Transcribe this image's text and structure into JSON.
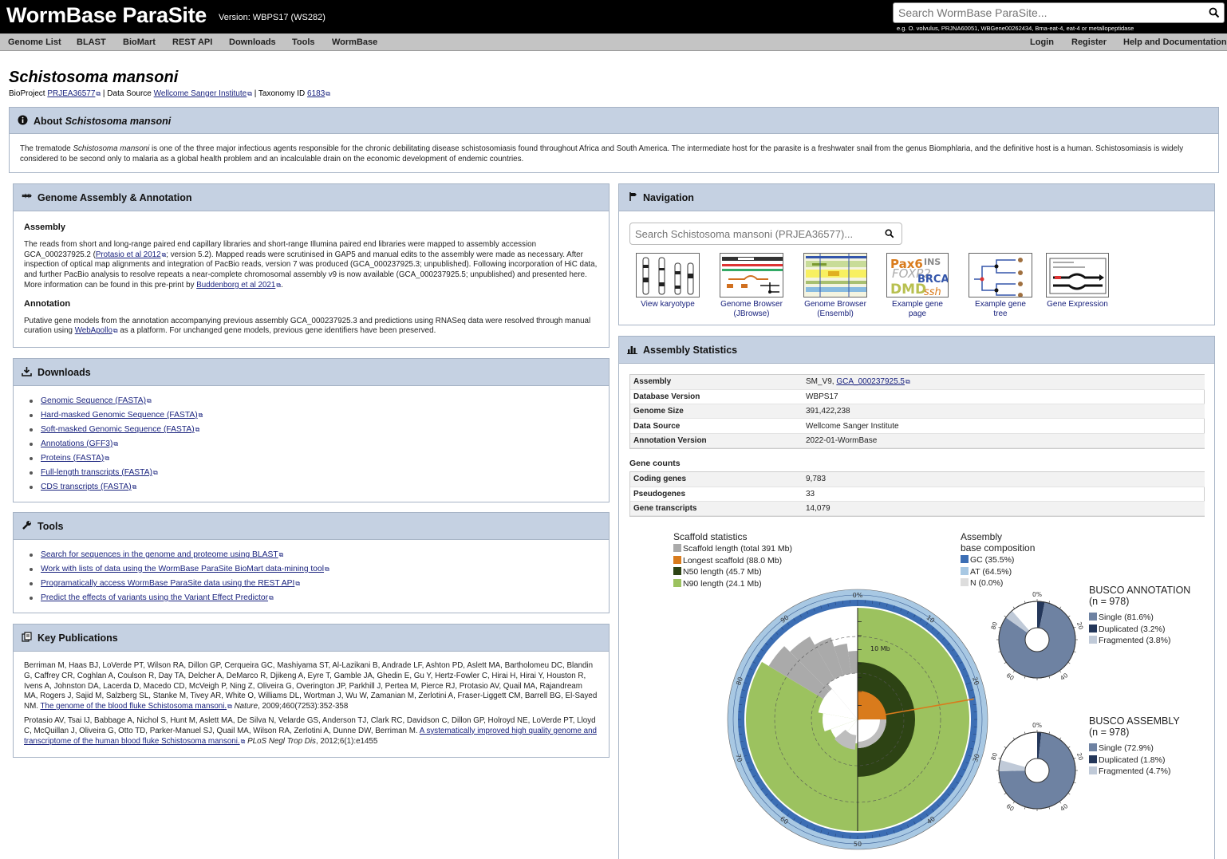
{
  "header": {
    "logo": "WormBase ParaSite",
    "version": "Version: WBPS17 (WS282)",
    "search_placeholder": "Search WormBase ParaSite...",
    "search_hint": "e.g. O. volvulus, PRJNA60051, WBGene00262434, Bma-eat-4, eat-4 or metallopeptidase"
  },
  "nav": {
    "left": [
      "Genome List",
      "BLAST",
      "BioMart",
      "REST API",
      "Downloads",
      "Tools",
      "WormBase"
    ],
    "right": [
      "Login",
      "Register",
      "Help and Documentation"
    ]
  },
  "species": {
    "title": "Schistosoma mansoni",
    "bioproject_label": "BioProject",
    "bioproject": "PRJEA36577",
    "source_label": "| Data Source",
    "source": "Wellcome Sanger Institute",
    "taxonomy_label": "| Taxonomy ID",
    "taxonomy": "6183"
  },
  "about": {
    "title_prefix": "About",
    "title_species": "Schistosoma mansoni",
    "text_a": "The trematode ",
    "text_species": "Schistosoma mansoni",
    "text_b": " is one of the three major infectious agents responsible for the chronic debilitating disease schistosomiasis found throughout Africa and South America. The intermediate host for the parasite is a freshwater snail from the genus Biomphlaria, and the definitive host is a human. Schistosomiasis is widely considered to be second only to malaria as a global health problem and an incalculable drain on the economic development of endemic countries."
  },
  "assembly_panel": {
    "title": "Genome Assembly & Annotation",
    "assembly_heading": "Assembly",
    "assembly_a": "The reads from short and long-range paired end capillary libraries and short-range Illumina paired end libraries were mapped to assembly accession GCA_000237925.2 (",
    "assembly_link1": "Protasio et al 2012",
    "assembly_b": "; version 5.2). Mapped reads were scrutinised in GAP5 and manual edits to the assembly were made as necessary. After inspection of optical map alignments and integration of PacBio reads, version 7 was produced (GCA_000237925.3; unpublished). Following incorporation of HiC data, and further PacBio analysis to resolve repeats a near-complete chromosomal assembly v9 is now available (GCA_000237925.5; unpublished) and presented here. More information can be found in this pre-print by ",
    "assembly_link2": "Buddenborg et al 2021",
    "assembly_c": ".",
    "annotation_heading": "Annotation",
    "annotation_a": "Putative gene models from the annotation accompanying previous assembly GCA_000237925.3 and predictions using RNASeq data were resolved through manual curation using ",
    "annotation_link": "WebApollo",
    "annotation_b": " as a platform. For unchanged gene models, previous gene identifiers have been preserved."
  },
  "downloads": {
    "title": "Downloads",
    "items": [
      "Genomic Sequence (FASTA)",
      "Hard-masked Genomic Sequence (FASTA)",
      "Soft-masked Genomic Sequence (FASTA)",
      "Annotations (GFF3)",
      "Proteins (FASTA)",
      "Full-length transcripts (FASTA)",
      "CDS transcripts (FASTA)"
    ]
  },
  "tools": {
    "title": "Tools",
    "items": [
      "Search for sequences in the genome and proteome using BLAST",
      "Work with lists of data using the WormBase ParaSite BioMart data-mining tool",
      "Programatically access WormBase ParaSite data using the REST API",
      "Predict the effects of variants using the Variant Effect Predictor"
    ]
  },
  "publications": {
    "title": "Key Publications",
    "p1_a": "Berriman M, Haas BJ, LoVerde PT, Wilson RA, Dillon GP, Cerqueira GC, Mashiyama ST, Al-Lazikani B, Andrade LF, Ashton PD, Aslett MA, Bartholomeu DC, Blandin G, Caffrey CR, Coghlan A, Coulson R, Day TA, Delcher A, DeMarco R, Djikeng A, Eyre T, Gamble JA, Ghedin E, Gu Y, Hertz-Fowler C, Hirai H, Hirai Y, Houston R, Ivens A, Johnston DA, Lacerda D, Macedo CD, McVeigh P, Ning Z, Oliveira G, Overington JP, Parkhill J, Pertea M, Pierce RJ, Protasio AV, Quail MA, Rajandream MA, Rogers J, Sajid M, Salzberg SL, Stanke M, Tivey AR, White O, Williams DL, Wortman J, Wu W, Zamanian M, Zerlotini A, Fraser-Liggett CM, Barrell BG, El-Sayed NM. ",
    "p1_link": "The genome of the blood fluke Schistosoma mansoni.",
    "p1_journal": "Nature",
    "p1_ref": ", 2009;460(7253):352-358",
    "p2_a": "Protasio AV, Tsai IJ, Babbage A, Nichol S, Hunt M, Aslett MA, De Silva N, Velarde GS, Anderson TJ, Clark RC, Davidson C, Dillon GP, Holroyd NE, LoVerde PT, Lloyd C, McQuillan J, Oliveira G, Otto TD, Parker-Manuel SJ, Quail MA, Wilson RA, Zerlotini A, Dunne DW, Berriman M. ",
    "p2_link": "A systematically improved high quality genome and transcriptome of the human blood fluke Schistosoma mansoni.",
    "p2_journal": "PLoS Negl Trop Dis",
    "p2_ref": ", 2012;6(1):e1455"
  },
  "navigation": {
    "title": "Navigation",
    "search_placeholder": "Search Schistosoma mansoni (PRJEA36577)...",
    "thumbs": [
      {
        "l1": "View karyotype",
        "l2": ""
      },
      {
        "l1": "Genome Browser",
        "l2": "(JBrowse)"
      },
      {
        "l1": "Genome Browser",
        "l2": "(Ensembl)"
      },
      {
        "l1": "Example gene page",
        "l2": ""
      },
      {
        "l1": "Example gene tree",
        "l2": ""
      },
      {
        "l1": "Gene Expression",
        "l2": ""
      }
    ]
  },
  "stats": {
    "title": "Assembly Statistics",
    "rows": [
      {
        "k": "Assembly",
        "v": "SM_V9, ",
        "link": "GCA_000237925.5"
      },
      {
        "k": "Database Version",
        "v": "WBPS17"
      },
      {
        "k": "Genome Size",
        "v": "391,422,238"
      },
      {
        "k": "Data Source",
        "v": "Wellcome Sanger Institute"
      },
      {
        "k": "Annotation Version",
        "v": "2022-01-WormBase"
      }
    ],
    "gene_counts_heading": "Gene counts",
    "gene_rows": [
      {
        "k": "Coding genes",
        "v": "9,783"
      },
      {
        "k": "Pseudogenes",
        "v": "33"
      },
      {
        "k": "Gene transcripts",
        "v": "14,079"
      }
    ]
  },
  "scaffold": {
    "title": "Scaffold statistics",
    "legend": [
      "Scaffold length (total 391 Mb)",
      "Longest scaffold (88.0 Mb)",
      "N50 length (45.7 Mb)",
      "N90 length (24.1 Mb)"
    ],
    "colors": [
      "#aaaaaa",
      "#d97b1c",
      "#2d4314",
      "#9cc25f"
    ],
    "scale_label": "10 Mb",
    "ticks": [
      "0%",
      "10",
      "20",
      "30",
      "40",
      "50",
      "60",
      "70",
      "80",
      "90"
    ]
  },
  "basecomp": {
    "title_l1": "Assembly",
    "title_l2": "base composition",
    "legend": [
      "GC (35.5%)",
      "AT (64.5%)",
      "N (0.0%)"
    ],
    "colors": [
      "#3c6eb4",
      "#a8c8e3",
      "#dddddd"
    ]
  },
  "busco_annotation": {
    "title": "BUSCO ANNOTATION",
    "n": "(n = 978)",
    "legend": [
      "Single (81.6%)",
      "Duplicated (3.2%)",
      "Fragmented (3.8%)"
    ],
    "values": [
      81.6,
      3.2,
      3.8
    ],
    "colors": [
      "#6e82a2",
      "#24375a",
      "#c0cad8"
    ],
    "ticks": [
      "0%",
      "20",
      "40",
      "60",
      "80"
    ]
  },
  "busco_assembly": {
    "title": "BUSCO ASSEMBLY",
    "n": "(n = 978)",
    "legend": [
      "Single (72.9%)",
      "Duplicated (1.8%)",
      "Fragmented (4.7%)"
    ],
    "values": [
      72.9,
      1.8,
      4.7
    ],
    "colors": [
      "#6e82a2",
      "#24375a",
      "#c0cad8"
    ],
    "ticks": [
      "0%",
      "20",
      "40",
      "60",
      "80"
    ]
  }
}
